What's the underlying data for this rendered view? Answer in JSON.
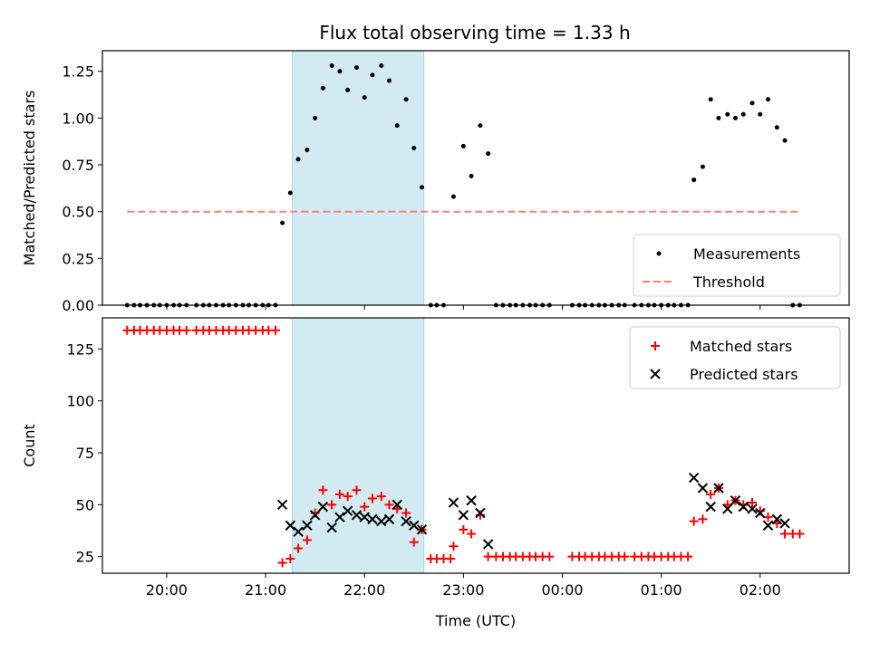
{
  "chart_data": [
    {
      "type": "scatter",
      "title": "Flux total observing time = 1.33 h",
      "ylabel": "Matched/Predicted stars",
      "xlabel": "",
      "ylim": [
        0,
        1.36
      ],
      "xlim_hours": [
        19.35,
        26.9
      ],
      "yticks": [
        "0.00",
        "0.25",
        "0.50",
        "0.75",
        "1.00",
        "1.25"
      ],
      "xticks": [
        "20:00",
        "21:00",
        "22:00",
        "23:00",
        "00:00",
        "01:00",
        "02:00"
      ],
      "xtick_labels_shown": false,
      "legend_position": "lower-right",
      "highlight_span_hours": [
        21.27,
        22.6
      ],
      "highlight_color": "#add8e6",
      "series": [
        {
          "name": "Measurements",
          "marker": "dot",
          "color": "#000000",
          "points": [
            [
              19.6,
              0
            ],
            [
              19.67,
              0
            ],
            [
              19.73,
              0
            ],
            [
              19.8,
              0
            ],
            [
              19.87,
              0
            ],
            [
              19.93,
              0
            ],
            [
              20.0,
              0
            ],
            [
              20.07,
              0
            ],
            [
              20.13,
              0
            ],
            [
              20.2,
              0
            ],
            [
              20.3,
              0
            ],
            [
              20.37,
              0
            ],
            [
              20.43,
              0
            ],
            [
              20.5,
              0
            ],
            [
              20.57,
              0
            ],
            [
              20.63,
              0
            ],
            [
              20.7,
              0
            ],
            [
              20.77,
              0
            ],
            [
              20.83,
              0
            ],
            [
              20.9,
              0
            ],
            [
              20.97,
              0
            ],
            [
              21.03,
              0
            ],
            [
              21.1,
              0
            ],
            [
              21.17,
              0.44
            ],
            [
              21.25,
              0.6
            ],
            [
              21.33,
              0.78
            ],
            [
              21.42,
              0.83
            ],
            [
              21.5,
              1.0
            ],
            [
              21.58,
              1.16
            ],
            [
              21.67,
              1.28
            ],
            [
              21.75,
              1.25
            ],
            [
              21.83,
              1.15
            ],
            [
              21.92,
              1.27
            ],
            [
              22.0,
              1.11
            ],
            [
              22.08,
              1.23
            ],
            [
              22.17,
              1.28
            ],
            [
              22.25,
              1.2
            ],
            [
              22.33,
              0.96
            ],
            [
              22.42,
              1.1
            ],
            [
              22.5,
              0.84
            ],
            [
              22.58,
              0.63
            ],
            [
              22.67,
              0
            ],
            [
              22.73,
              0
            ],
            [
              22.8,
              0
            ],
            [
              22.9,
              0.58
            ],
            [
              23.0,
              0.85
            ],
            [
              23.08,
              0.69
            ],
            [
              23.17,
              0.96
            ],
            [
              23.25,
              0.81
            ],
            [
              23.33,
              0
            ],
            [
              23.4,
              0
            ],
            [
              23.47,
              0
            ],
            [
              23.53,
              0
            ],
            [
              23.6,
              0
            ],
            [
              23.67,
              0
            ],
            [
              23.73,
              0
            ],
            [
              23.8,
              0
            ],
            [
              23.87,
              0
            ],
            [
              24.1,
              0
            ],
            [
              24.17,
              0
            ],
            [
              24.23,
              0
            ],
            [
              24.3,
              0
            ],
            [
              24.37,
              0
            ],
            [
              24.43,
              0
            ],
            [
              24.5,
              0
            ],
            [
              24.57,
              0
            ],
            [
              24.63,
              0
            ],
            [
              24.73,
              0
            ],
            [
              24.8,
              0
            ],
            [
              24.87,
              0
            ],
            [
              24.93,
              0
            ],
            [
              25.0,
              0
            ],
            [
              25.07,
              0
            ],
            [
              25.13,
              0
            ],
            [
              25.2,
              0
            ],
            [
              25.27,
              0
            ],
            [
              25.33,
              0.67
            ],
            [
              25.42,
              0.74
            ],
            [
              25.5,
              1.1
            ],
            [
              25.58,
              1.0
            ],
            [
              25.67,
              1.02
            ],
            [
              25.75,
              1.0
            ],
            [
              25.83,
              1.02
            ],
            [
              25.92,
              1.08
            ],
            [
              26.0,
              1.02
            ],
            [
              26.08,
              1.1
            ],
            [
              26.17,
              0.95
            ],
            [
              26.25,
              0.88
            ],
            [
              26.33,
              0
            ],
            [
              26.4,
              0
            ]
          ]
        },
        {
          "name": "Threshold",
          "style": "dashed",
          "color": "#ff7f7f",
          "x": [
            19.6,
            26.4
          ],
          "values": [
            0.5,
            0.5
          ]
        }
      ]
    },
    {
      "type": "scatter",
      "title": "",
      "ylabel": "Count",
      "xlabel": "Time (UTC)",
      "ylim": [
        17,
        140
      ],
      "xlim_hours": [
        19.35,
        26.9
      ],
      "yticks": [
        "25",
        "50",
        "75",
        "100",
        "125"
      ],
      "xticks": [
        "20:00",
        "21:00",
        "22:00",
        "23:00",
        "00:00",
        "01:00",
        "02:00"
      ],
      "xtick_labels_shown": true,
      "legend_position": "top-right",
      "highlight_span_hours": [
        21.27,
        22.6
      ],
      "highlight_color": "#add8e6",
      "series": [
        {
          "name": "Matched stars",
          "marker": "plus",
          "color": "#ff0000",
          "points": [
            [
              19.6,
              134
            ],
            [
              19.67,
              134
            ],
            [
              19.73,
              134
            ],
            [
              19.8,
              134
            ],
            [
              19.87,
              134
            ],
            [
              19.93,
              134
            ],
            [
              20.0,
              134
            ],
            [
              20.07,
              134
            ],
            [
              20.13,
              134
            ],
            [
              20.2,
              134
            ],
            [
              20.3,
              134
            ],
            [
              20.37,
              134
            ],
            [
              20.43,
              134
            ],
            [
              20.5,
              134
            ],
            [
              20.57,
              134
            ],
            [
              20.63,
              134
            ],
            [
              20.7,
              134
            ],
            [
              20.77,
              134
            ],
            [
              20.83,
              134
            ],
            [
              20.9,
              134
            ],
            [
              20.97,
              134
            ],
            [
              21.03,
              134
            ],
            [
              21.1,
              134
            ],
            [
              21.17,
              22
            ],
            [
              21.25,
              24
            ],
            [
              21.33,
              29
            ],
            [
              21.42,
              33
            ],
            [
              21.5,
              46
            ],
            [
              21.58,
              57
            ],
            [
              21.67,
              50
            ],
            [
              21.75,
              55
            ],
            [
              21.83,
              54
            ],
            [
              21.92,
              57
            ],
            [
              22.0,
              49
            ],
            [
              22.08,
              53
            ],
            [
              22.17,
              54
            ],
            [
              22.25,
              50
            ],
            [
              22.33,
              48
            ],
            [
              22.42,
              46
            ],
            [
              22.5,
              32
            ],
            [
              22.58,
              38
            ],
            [
              22.67,
              24
            ],
            [
              22.73,
              24
            ],
            [
              22.8,
              24
            ],
            [
              22.87,
              24
            ],
            [
              22.9,
              30
            ],
            [
              23.0,
              38
            ],
            [
              23.08,
              36
            ],
            [
              23.17,
              45
            ],
            [
              23.25,
              25
            ],
            [
              23.33,
              25
            ],
            [
              23.4,
              25
            ],
            [
              23.47,
              25
            ],
            [
              23.53,
              25
            ],
            [
              23.6,
              25
            ],
            [
              23.67,
              25
            ],
            [
              23.73,
              25
            ],
            [
              23.8,
              25
            ],
            [
              23.87,
              25
            ],
            [
              24.1,
              25
            ],
            [
              24.17,
              25
            ],
            [
              24.23,
              25
            ],
            [
              24.3,
              25
            ],
            [
              24.37,
              25
            ],
            [
              24.43,
              25
            ],
            [
              24.5,
              25
            ],
            [
              24.57,
              25
            ],
            [
              24.63,
              25
            ],
            [
              24.73,
              25
            ],
            [
              24.8,
              25
            ],
            [
              24.87,
              25
            ],
            [
              24.93,
              25
            ],
            [
              25.0,
              25
            ],
            [
              25.07,
              25
            ],
            [
              25.13,
              25
            ],
            [
              25.2,
              25
            ],
            [
              25.27,
              25
            ],
            [
              25.33,
              42
            ],
            [
              25.42,
              43
            ],
            [
              25.5,
              55
            ],
            [
              25.58,
              58
            ],
            [
              25.67,
              50
            ],
            [
              25.75,
              52
            ],
            [
              25.83,
              50
            ],
            [
              25.92,
              51
            ],
            [
              26.0,
              47
            ],
            [
              26.08,
              44
            ],
            [
              26.17,
              41
            ],
            [
              26.25,
              36
            ],
            [
              26.33,
              36
            ],
            [
              26.4,
              36
            ]
          ]
        },
        {
          "name": "Predicted stars",
          "marker": "x",
          "color": "#000000",
          "points": [
            [
              21.17,
              50
            ],
            [
              21.25,
              40
            ],
            [
              21.33,
              37
            ],
            [
              21.42,
              40
            ],
            [
              21.5,
              45
            ],
            [
              21.58,
              49
            ],
            [
              21.67,
              39
            ],
            [
              21.75,
              44
            ],
            [
              21.83,
              47
            ],
            [
              21.92,
              45
            ],
            [
              22.0,
              44
            ],
            [
              22.08,
              43
            ],
            [
              22.17,
              42
            ],
            [
              22.25,
              43
            ],
            [
              22.33,
              50
            ],
            [
              22.42,
              42
            ],
            [
              22.5,
              40
            ],
            [
              22.58,
              38
            ],
            [
              22.9,
              51
            ],
            [
              23.0,
              45
            ],
            [
              23.08,
              52
            ],
            [
              23.17,
              46
            ],
            [
              23.25,
              31
            ],
            [
              25.33,
              63
            ],
            [
              25.42,
              58
            ],
            [
              25.5,
              49
            ],
            [
              25.58,
              58
            ],
            [
              25.67,
              48
            ],
            [
              25.75,
              52
            ],
            [
              25.83,
              49
            ],
            [
              25.92,
              48
            ],
            [
              26.0,
              46
            ],
            [
              26.08,
              40
            ],
            [
              26.17,
              43
            ],
            [
              26.25,
              41
            ]
          ]
        }
      ]
    }
  ]
}
